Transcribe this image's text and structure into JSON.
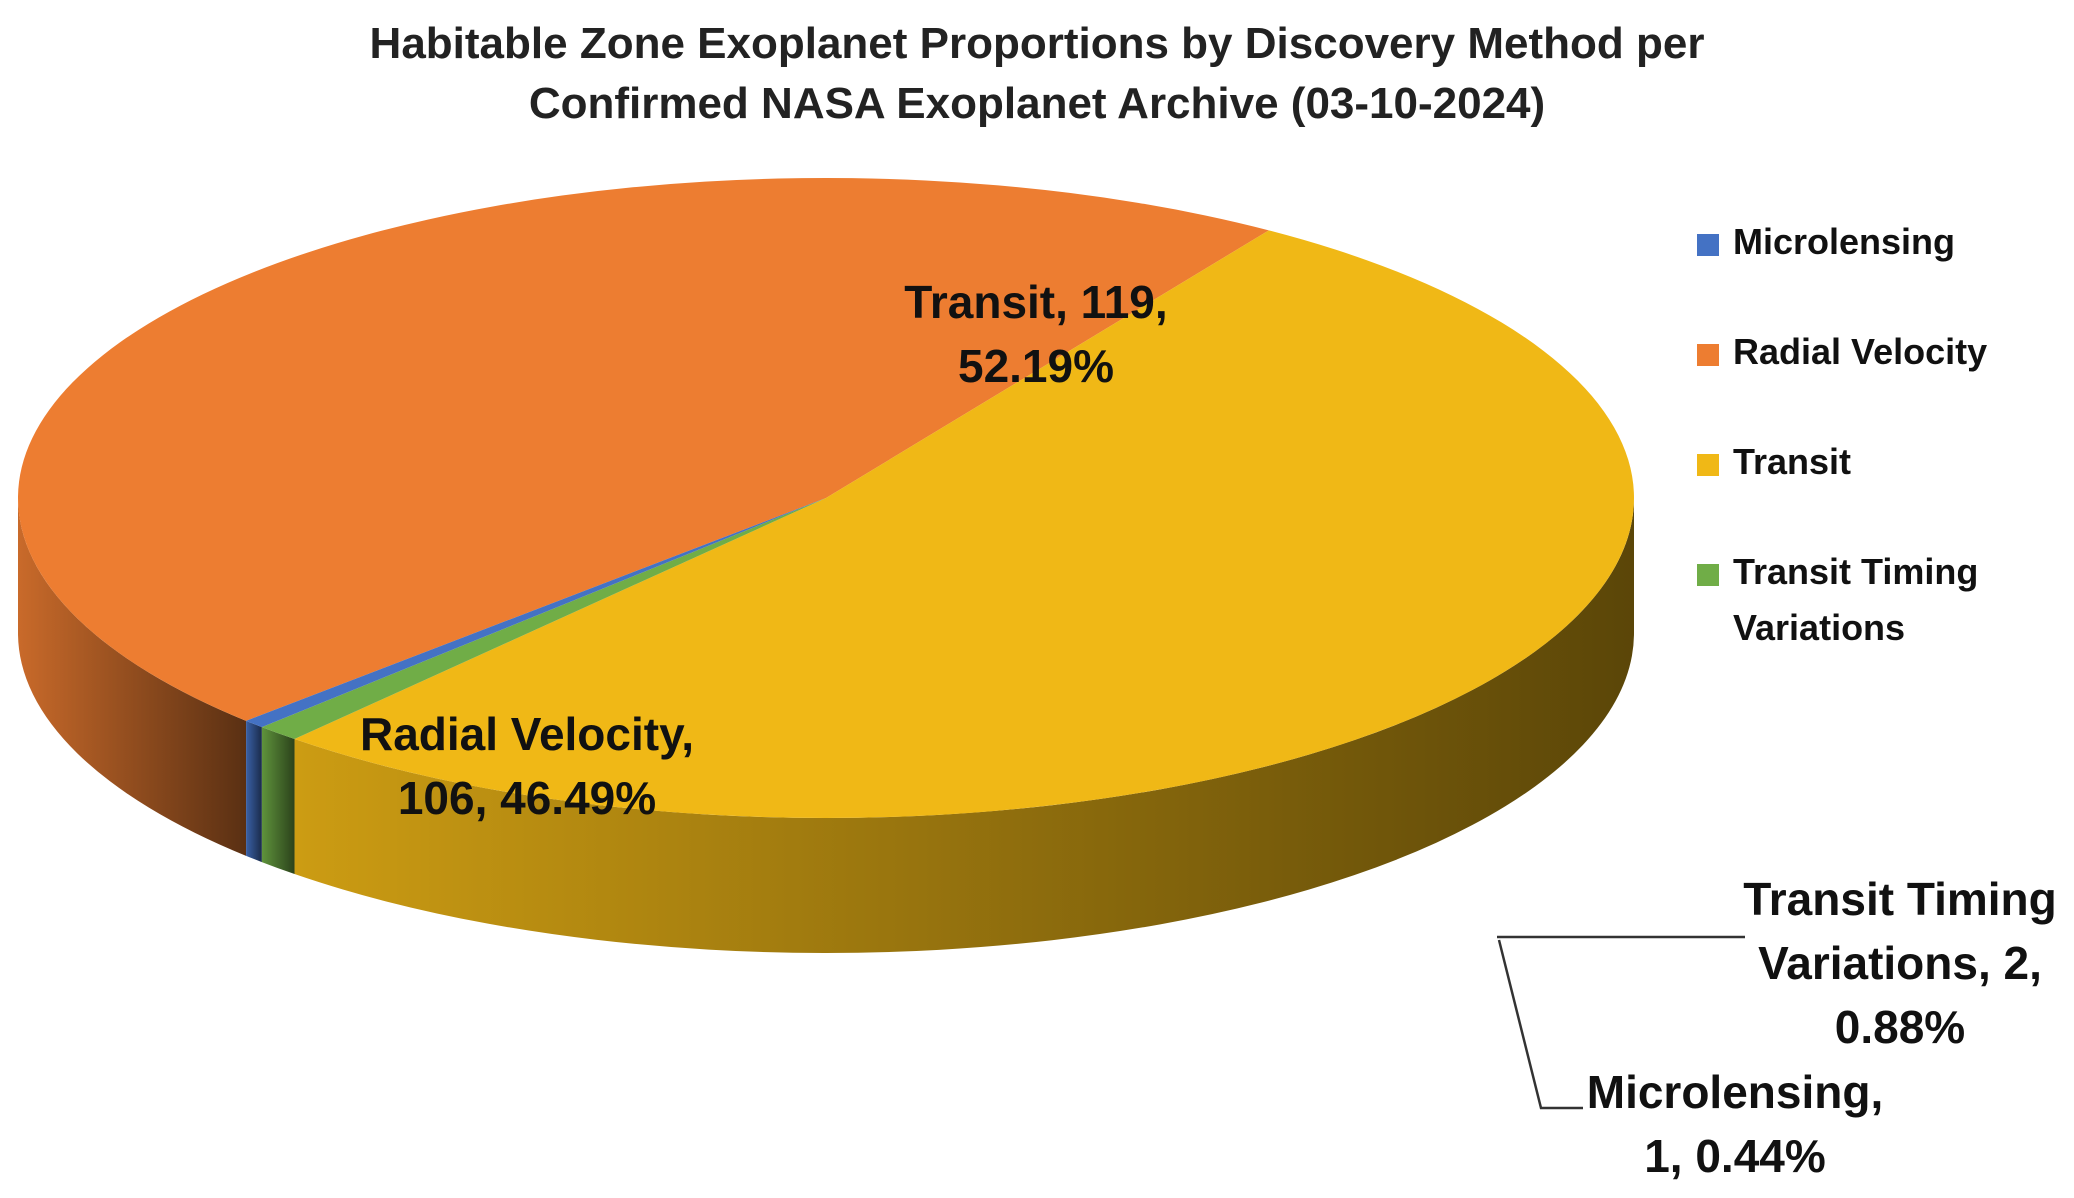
{
  "chart_data": {
    "type": "pie",
    "title": [
      "Habitable Zone Exoplanet Proportions by Discovery Method per",
      "Confirmed NASA Exoplanet Archive (03-10-2024)"
    ],
    "three_d": true,
    "legend_position": "right",
    "series": [
      {
        "name": "Microlensing",
        "value": 1,
        "percent": "0.44%",
        "color": "#4472C4",
        "label_lines": [
          "Microlensing,",
          "1, 0.44%"
        ]
      },
      {
        "name": "Radial Velocity",
        "value": 106,
        "percent": "46.49%",
        "color": "#ED7D31",
        "label_lines": [
          "Radial Velocity,",
          "106, 46.49%"
        ]
      },
      {
        "name": "Transit",
        "value": 119,
        "percent": "52.19%",
        "color": "#F0B816",
        "label_lines": [
          "Transit, 119,",
          "52.19%"
        ]
      },
      {
        "name": "Transit Timing Variations",
        "value": 2,
        "percent": "0.88%",
        "color": "#70AD47",
        "label_lines": [
          "Transit Timing",
          "Variations, 2,",
          "0.88%"
        ]
      }
    ],
    "legend": [
      {
        "label_lines": [
          "Microlensing"
        ]
      },
      {
        "label_lines": [
          "Radial Velocity"
        ]
      },
      {
        "label_lines": [
          "Transit"
        ]
      },
      {
        "label_lines": [
          "Transit Timing",
          "Variations"
        ]
      }
    ]
  }
}
